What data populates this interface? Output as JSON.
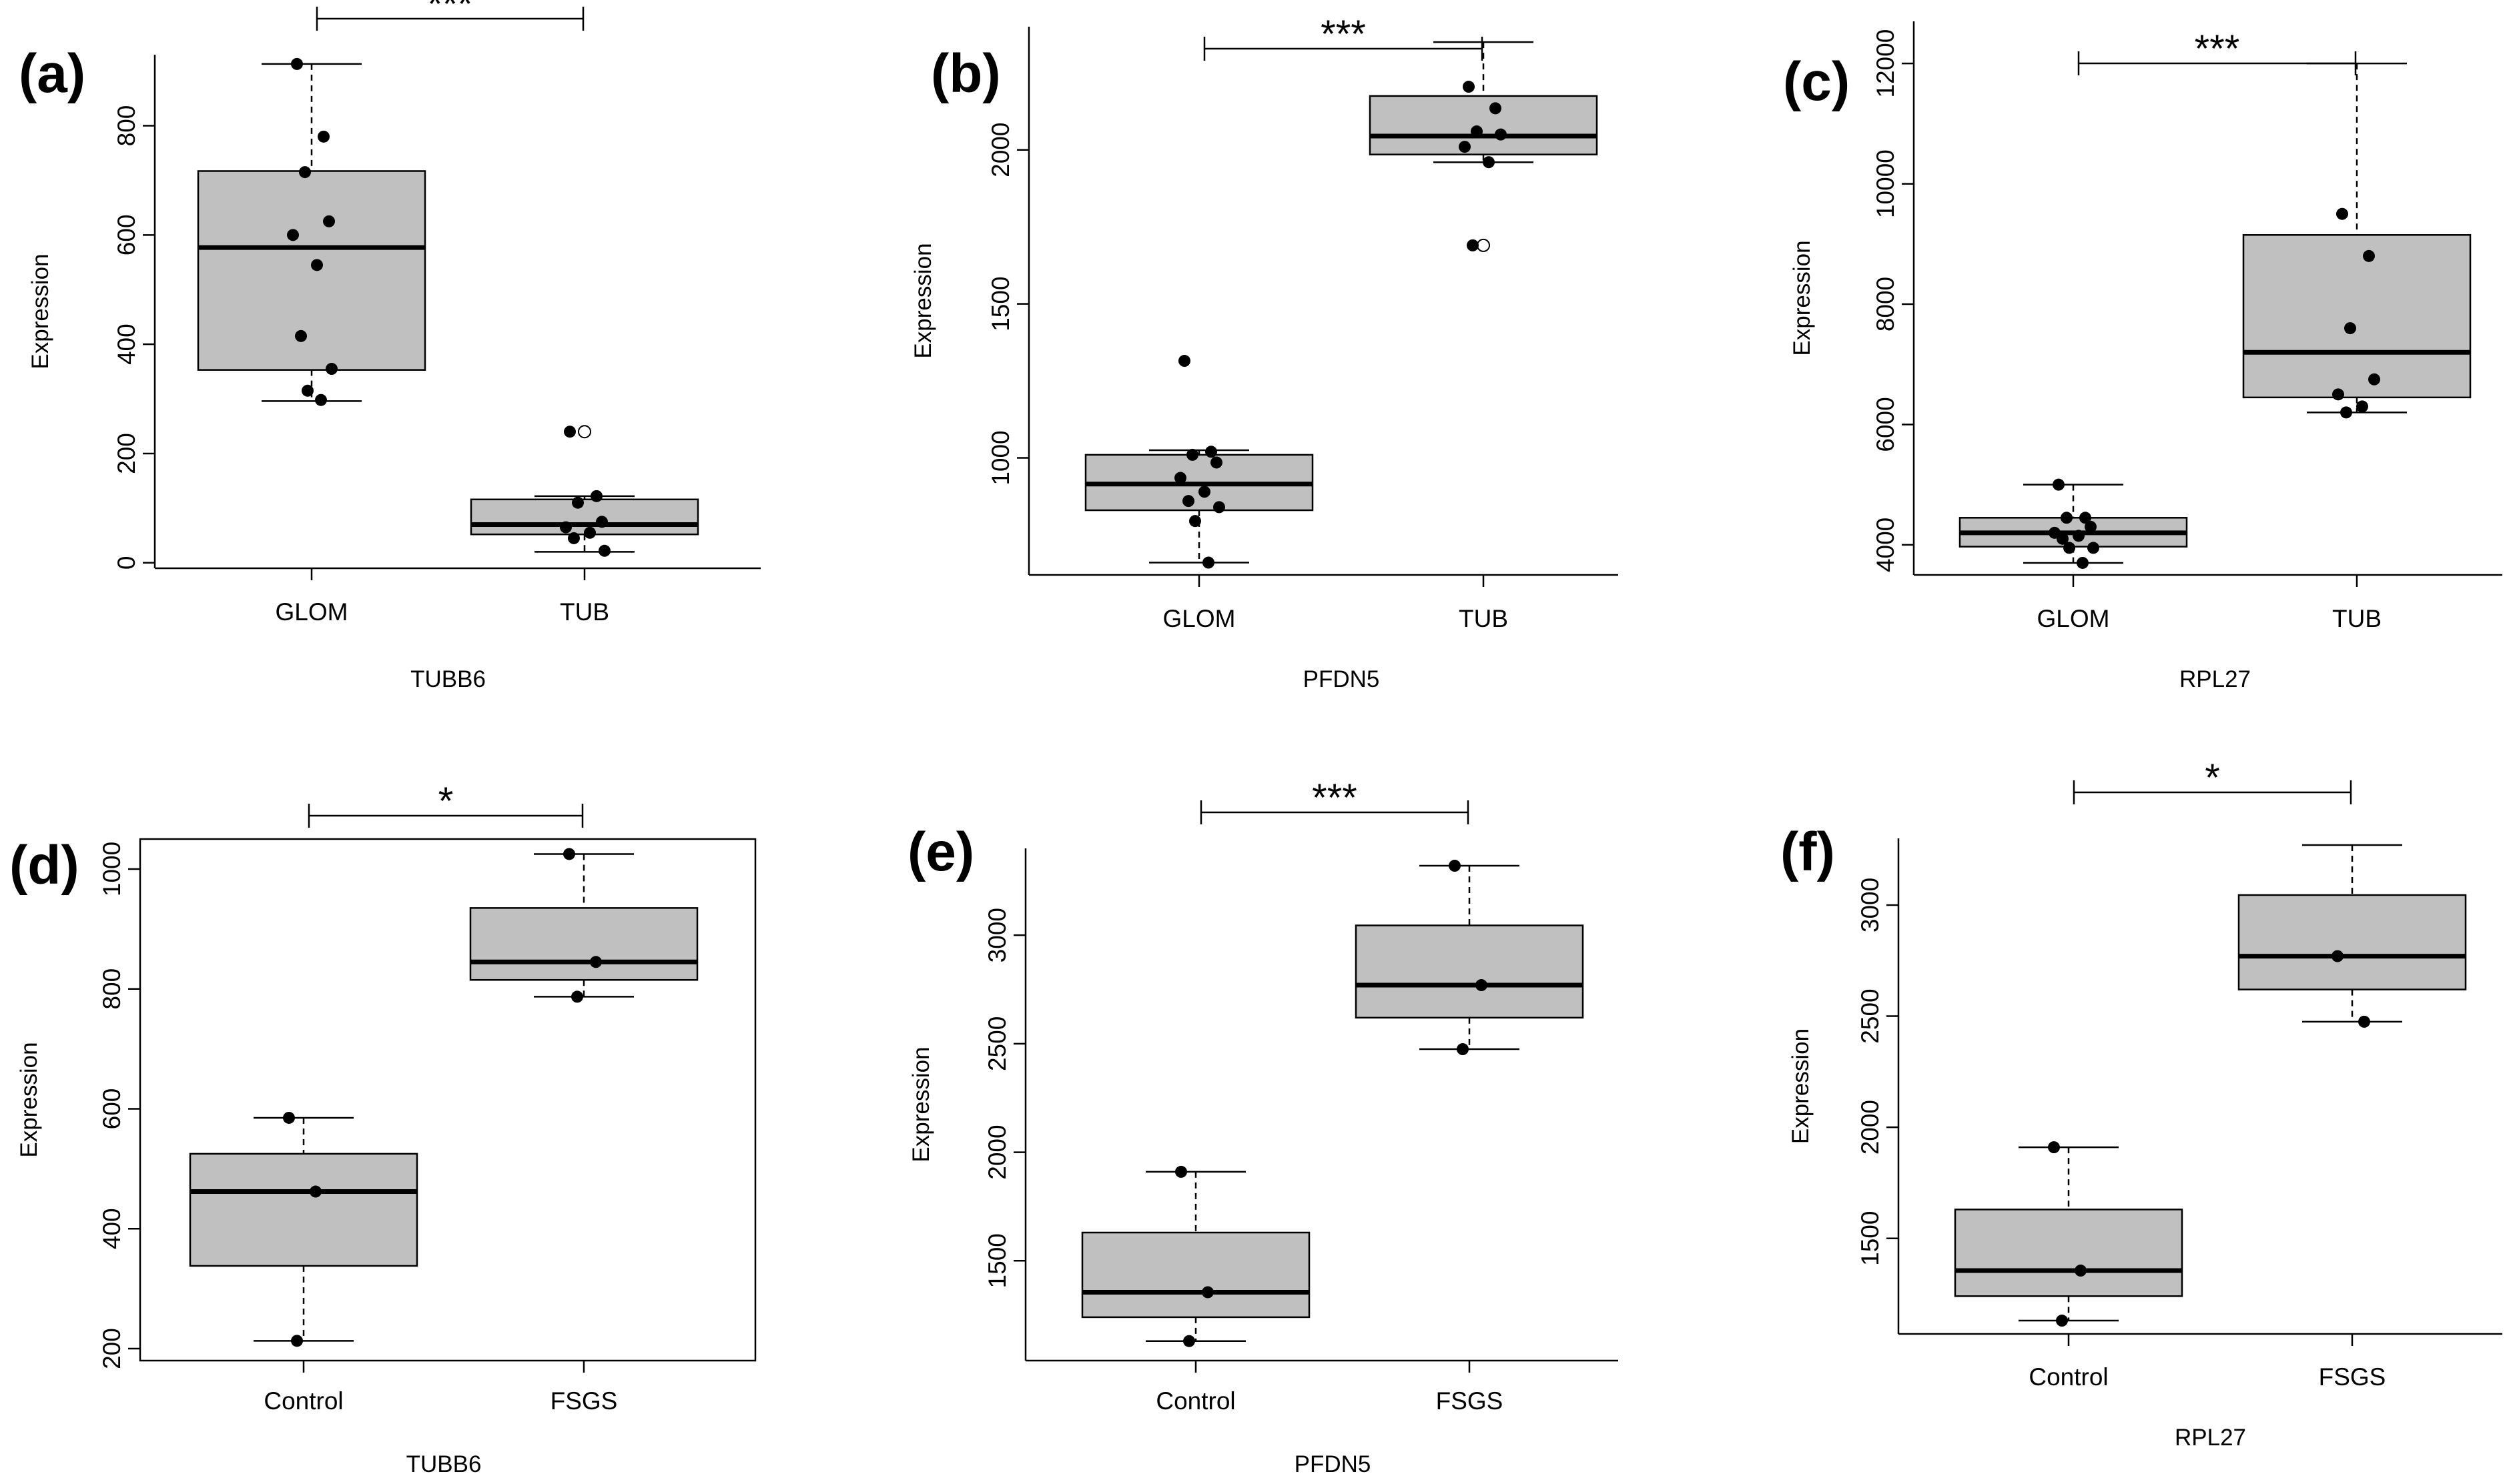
{
  "figure": {
    "background": "#ffffff",
    "box_fill": "#c0c0c0",
    "ink": "#000000"
  },
  "chart_data": [
    {
      "panel": "(a)",
      "type": "box",
      "ylabel": "Expression",
      "xlabel": "TUBB6",
      "categories": [
        "GLOM",
        "TUB"
      ],
      "ylim": [
        -10,
        930
      ],
      "yticks": [
        0,
        200,
        400,
        600,
        800
      ],
      "box_frame": "L",
      "significance": "***",
      "boxes": [
        {
          "category": "GLOM",
          "whisker_low": 296,
          "q1": 353,
          "median": 577,
          "q3": 717,
          "whisker_high": 913,
          "points": [
            913,
            780,
            715,
            625,
            600,
            545,
            415,
            355,
            315,
            298
          ]
        },
        {
          "category": "TUB",
          "whisker_low": 20,
          "q1": 52,
          "median": 70,
          "q3": 116,
          "whisker_high": 122,
          "outliers": [
            240
          ],
          "points": [
            240,
            122,
            110,
            75,
            65,
            55,
            45,
            22
          ]
        }
      ]
    },
    {
      "panel": "(b)",
      "type": "box",
      "ylabel": "Expression",
      "xlabel": "PFDN5",
      "categories": [
        "GLOM",
        "TUB"
      ],
      "ylim": [
        620,
        2400
      ],
      "yticks": [
        1000,
        1500,
        2000
      ],
      "box_frame": "L",
      "significance": "***",
      "boxes": [
        {
          "category": "GLOM",
          "whisker_low": 660,
          "q1": 830,
          "median": 915,
          "q3": 1010,
          "whisker_high": 1025,
          "points": [
            1315,
            1020,
            1010,
            985,
            935,
            890,
            860,
            840,
            795,
            660
          ]
        },
        {
          "category": "TUB",
          "whisker_low": 1960,
          "q1": 1985,
          "median": 2045,
          "q3": 2175,
          "whisker_high": 2350,
          "outliers": [
            1690
          ],
          "points": [
            2205,
            2135,
            2060,
            2050,
            2010,
            1960,
            1690
          ]
        }
      ]
    },
    {
      "panel": "(c)",
      "type": "box",
      "ylabel": "Expression",
      "xlabel": "RPL27",
      "categories": [
        "GLOM",
        "TUB"
      ],
      "ylim": [
        3500,
        12700
      ],
      "yticks": [
        4000,
        6000,
        8000,
        10000,
        12000
      ],
      "box_frame": "L",
      "significance": "***",
      "boxes": [
        {
          "category": "GLOM",
          "whisker_low": 3700,
          "q1": 3970,
          "median": 4200,
          "q3": 4450,
          "whisker_high": 5000,
          "points": [
            5000,
            4450,
            4450,
            4300,
            4200,
            4150,
            4100,
            3950,
            3950,
            3700
          ]
        },
        {
          "category": "TUB",
          "whisker_low": 6200,
          "q1": 6450,
          "median": 7200,
          "q3": 9150,
          "whisker_high": 12000,
          "points": [
            9500,
            8800,
            7600,
            6750,
            6500,
            6300,
            6200
          ]
        }
      ]
    },
    {
      "panel": "(d)",
      "type": "box",
      "ylabel": "Expression",
      "xlabel": "TUBB6",
      "categories": [
        "Control",
        "FSGS"
      ],
      "ylim": [
        180,
        1050
      ],
      "yticks": [
        200,
        400,
        600,
        800,
        1000
      ],
      "box_frame": "full",
      "significance": "*",
      "boxes": [
        {
          "category": "Control",
          "whisker_low": 213,
          "q1": 338,
          "median": 462,
          "q3": 525,
          "whisker_high": 585,
          "points": [
            585,
            462,
            213
          ]
        },
        {
          "category": "FSGS",
          "whisker_low": 787,
          "q1": 815,
          "median": 845,
          "q3": 935,
          "whisker_high": 1025,
          "points": [
            1025,
            845,
            787
          ]
        }
      ]
    },
    {
      "panel": "(e)",
      "type": "box",
      "ylabel": "Expression",
      "xlabel": "PFDN5",
      "categories": [
        "Control",
        "FSGS"
      ],
      "ylim": [
        1040,
        3400
      ],
      "yticks": [
        1500,
        2000,
        2500,
        3000
      ],
      "box_frame": "L",
      "significance": "***",
      "boxes": [
        {
          "category": "Control",
          "whisker_low": 1130,
          "q1": 1240,
          "median": 1355,
          "q3": 1630,
          "whisker_high": 1910,
          "points": [
            1910,
            1355,
            1130
          ]
        },
        {
          "category": "FSGS",
          "whisker_low": 2475,
          "q1": 2620,
          "median": 2770,
          "q3": 3045,
          "whisker_high": 3320,
          "points": [
            3320,
            2770,
            2475
          ]
        }
      ]
    },
    {
      "panel": "(f)",
      "type": "box",
      "ylabel": "Expression",
      "xlabel": "RPL27",
      "categories": [
        "Control",
        "FSGS"
      ],
      "ylim": [
        1070,
        3300
      ],
      "yticks": [
        1500,
        2000,
        2500,
        3000
      ],
      "box_frame": "L",
      "significance": "*",
      "boxes": [
        {
          "category": "Control",
          "whisker_low": 1130,
          "q1": 1240,
          "median": 1355,
          "q3": 1630,
          "whisker_high": 1910,
          "points": [
            1910,
            1355,
            1130
          ]
        },
        {
          "category": "FSGS",
          "whisker_low": 2475,
          "q1": 2620,
          "median": 2770,
          "q3": 3045,
          "whisker_high": 3270,
          "points": [
            2770,
            2475
          ]
        }
      ]
    }
  ]
}
